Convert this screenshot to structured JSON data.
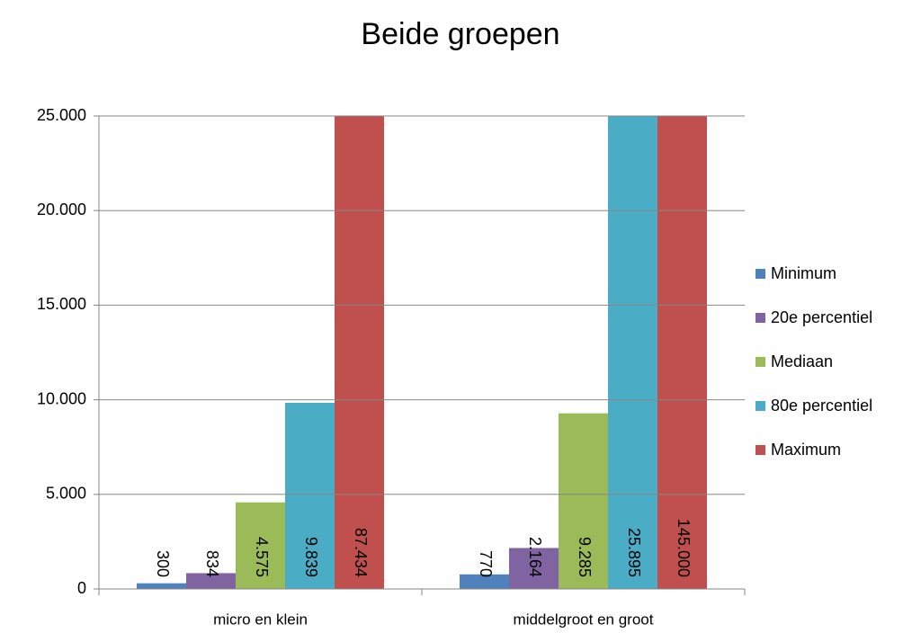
{
  "chart_data": {
    "type": "bar",
    "title": "Beide groepen",
    "categories": [
      "micro en klein",
      "middelgroot en groot"
    ],
    "series": [
      {
        "name": "Minimum",
        "color": "#4f81bd",
        "values": [
          300,
          770
        ],
        "value_labels": [
          "300",
          "770"
        ]
      },
      {
        "name": "20e percentiel",
        "color": "#8064a2",
        "values": [
          834,
          2164
        ],
        "value_labels": [
          "834",
          "2.164"
        ]
      },
      {
        "name": "Mediaan",
        "color": "#9bbb59",
        "values": [
          4575,
          9285
        ],
        "value_labels": [
          "4.575",
          "9.285"
        ]
      },
      {
        "name": "80e percentiel",
        "color": "#4bacc6",
        "values": [
          9839,
          25895
        ],
        "value_labels": [
          "9.839",
          "25.895"
        ]
      },
      {
        "name": "Maximum",
        "color": "#c0504d",
        "values": [
          87434,
          145000
        ],
        "value_labels": [
          "87.434",
          "145.000"
        ]
      }
    ],
    "ylim": [
      0,
      25000
    ],
    "yticks": [
      0,
      {
        "value": 5000,
        "label": "5.000"
      },
      {
        "value": 10000,
        "label": "10.000"
      },
      {
        "value": 15000,
        "label": "15.000"
      },
      {
        "value": 20000,
        "label": "20.000"
      },
      {
        "value": 25000,
        "label": "25.000"
      }
    ],
    "grid": true,
    "legend": "right"
  }
}
